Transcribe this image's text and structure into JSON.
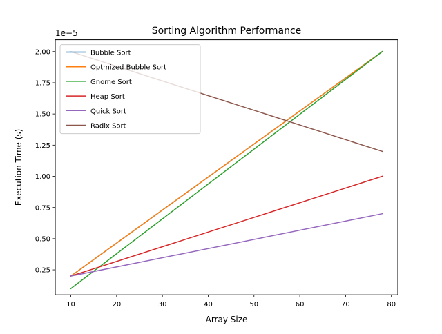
{
  "chart_data": {
    "type": "line",
    "title": "Sorting Algorithm Performance",
    "xlabel": "Array Size",
    "ylabel": "Execution Time (s)",
    "y_offset_label": "1e−5",
    "x": [
      10,
      78
    ],
    "xlim": [
      6.6,
      81.4
    ],
    "ylim": [
      0.05,
      2.095
    ],
    "y_scale_factor": 1e-05,
    "xticks": [
      10,
      20,
      30,
      40,
      50,
      60,
      70,
      80
    ],
    "yticks": [
      0.25,
      0.5,
      0.75,
      1.0,
      1.25,
      1.5,
      1.75,
      2.0
    ],
    "ytick_labels": [
      "0.25",
      "0.50",
      "0.75",
      "1.00",
      "1.25",
      "1.50",
      "1.75",
      "2.00"
    ],
    "grid": false,
    "legend_position": "top-left",
    "series": [
      {
        "name": "Bubble Sort",
        "color": "#1f77b4",
        "values": [
          0.2,
          2.0
        ]
      },
      {
        "name": "Optmized Bubble Sort",
        "color": "#ff7f0e",
        "values": [
          0.2,
          2.0
        ]
      },
      {
        "name": "Gnome Sort",
        "color": "#2ca02c",
        "values": [
          0.1,
          2.0
        ]
      },
      {
        "name": "Heap Sort",
        "color": "#d62728",
        "values": [
          0.2,
          1.0
        ]
      },
      {
        "name": "Quick Sort",
        "color": "#9467bd",
        "values": [
          0.2,
          0.7
        ]
      },
      {
        "name": "Radix Sort",
        "color": "#8c564b",
        "values": [
          2.0,
          1.2
        ]
      }
    ]
  }
}
